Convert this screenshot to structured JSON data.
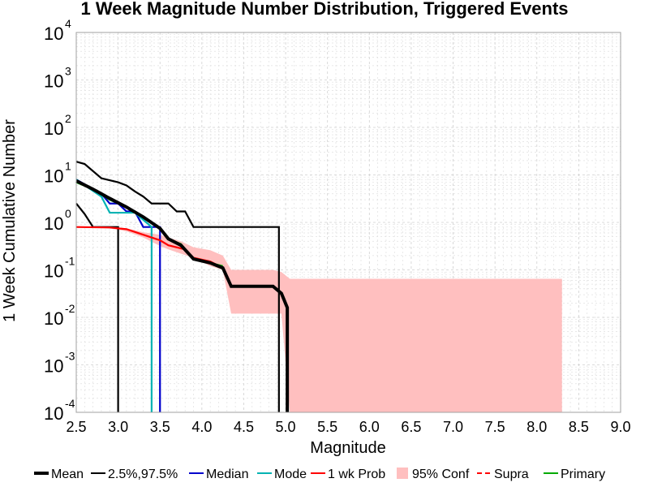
{
  "chart_data": {
    "type": "line",
    "title": "1 Week Magnitude Number Distribution, Triggered Events",
    "xlabel": "Magnitude",
    "ylabel": "1 Week Cumulative Number",
    "xlim": [
      2.5,
      9.0
    ],
    "ylim": [
      0.0001,
      10000
    ],
    "yscale": "log",
    "xticks": [
      "2.5",
      "3.0",
      "3.5",
      "4.0",
      "4.5",
      "5.0",
      "5.5",
      "6.0",
      "6.5",
      "7.0",
      "7.5",
      "8.0",
      "8.5",
      "9.0"
    ],
    "yticks": [
      {
        "base": "10",
        "exp": "-4",
        "value": 0.0001
      },
      {
        "base": "10",
        "exp": "-3",
        "value": 0.001
      },
      {
        "base": "10",
        "exp": "-2",
        "value": 0.01
      },
      {
        "base": "10",
        "exp": "-1",
        "value": 0.1
      },
      {
        "base": "10",
        "exp": "0",
        "value": 1
      },
      {
        "base": "10",
        "exp": "1",
        "value": 10
      },
      {
        "base": "10",
        "exp": "2",
        "value": 100
      },
      {
        "base": "10",
        "exp": "3",
        "value": 1000
      },
      {
        "base": "10",
        "exp": "4",
        "value": 10000
      }
    ],
    "grid": true,
    "legend_position": "bottom",
    "legend": [
      {
        "name": "Mean",
        "color": "#000000",
        "style": "thick"
      },
      {
        "name": "2.5%,97.5%",
        "color": "#000000",
        "style": "thin"
      },
      {
        "name": "Median",
        "color": "#0000cc",
        "style": "thin"
      },
      {
        "name": "Mode",
        "color": "#00b3b3",
        "style": "thin"
      },
      {
        "name": "1 wk Prob",
        "color": "#ff0000",
        "style": "thin"
      },
      {
        "name": "95% Conf",
        "color": "#ffbfbf",
        "style": "patch"
      },
      {
        "name": "Supra",
        "color": "#ff0000",
        "style": "dashed"
      },
      {
        "name": "Primary",
        "color": "#00aa00",
        "style": "thin"
      }
    ],
    "series": [
      {
        "name": "95% Conf",
        "kind": "band",
        "color": "#ffbfbf",
        "x": [
          2.5,
          2.7,
          2.9,
          3.1,
          3.3,
          3.5,
          3.6,
          3.75,
          3.9,
          4.1,
          4.25,
          4.35,
          4.5,
          4.6,
          4.75,
          4.85,
          4.95,
          5.05,
          8.3
        ],
        "lower": [
          0.8,
          0.8,
          0.75,
          0.65,
          0.48,
          0.32,
          0.27,
          0.22,
          0.18,
          0.12,
          0.1,
          0.012,
          0.012,
          0.012,
          0.012,
          0.012,
          0.012,
          0.0001,
          0.0001
        ],
        "upper": [
          0.8,
          0.8,
          0.8,
          0.75,
          0.62,
          0.55,
          0.48,
          0.4,
          0.3,
          0.26,
          0.2,
          0.1,
          0.1,
          0.1,
          0.1,
          0.1,
          0.09,
          0.065,
          0.065
        ]
      },
      {
        "name": "97.5%",
        "kind": "line",
        "color": "#000000",
        "width": 2.2,
        "x": [
          2.5,
          2.6,
          2.8,
          3.0,
          3.1,
          3.2,
          3.3,
          3.4,
          3.5,
          3.6,
          3.7,
          3.8,
          3.9,
          4.0,
          4.9,
          4.92,
          4.92
        ],
        "y": [
          19,
          17,
          8.5,
          7,
          6,
          4.5,
          3.5,
          2.5,
          2.5,
          2.5,
          1.7,
          1.7,
          0.8,
          0.8,
          0.8,
          0.8,
          0.0001
        ]
      },
      {
        "name": "2.5%",
        "kind": "line",
        "color": "#000000",
        "width": 2.2,
        "x": [
          2.5,
          2.6,
          2.7,
          3.0,
          3.0
        ],
        "y": [
          2.5,
          1.5,
          0.8,
          0.8,
          0.0001
        ]
      },
      {
        "name": "Median",
        "kind": "line",
        "color": "#0000cc",
        "width": 2.2,
        "x": [
          2.5,
          2.8,
          2.9,
          3.0,
          3.1,
          3.2,
          3.3,
          3.5,
          3.5
        ],
        "y": [
          8,
          4,
          2.5,
          2.5,
          1.7,
          1.7,
          0.8,
          0.8,
          0.0001
        ]
      },
      {
        "name": "Mode",
        "kind": "line",
        "color": "#00b3b3",
        "width": 2.2,
        "x": [
          2.5,
          2.8,
          2.9,
          3.1,
          3.2,
          3.4,
          3.4
        ],
        "y": [
          8,
          3.5,
          1.6,
          1.6,
          1.6,
          0.8,
          0.0001
        ]
      },
      {
        "name": "1 wk Prob",
        "kind": "line",
        "color": "#ff0000",
        "width": 2.2,
        "x": [
          2.5,
          2.9,
          3.1,
          3.3,
          3.5,
          3.6,
          3.8,
          3.9,
          4.1,
          4.25,
          4.35,
          4.5,
          4.6,
          4.75,
          4.85,
          4.95,
          5.0
        ],
        "y": [
          0.8,
          0.78,
          0.72,
          0.55,
          0.42,
          0.33,
          0.27,
          0.18,
          0.15,
          0.11,
          0.045,
          0.045,
          0.045,
          0.045,
          0.045,
          0.032,
          0.018
        ]
      },
      {
        "name": "Primary",
        "kind": "line",
        "color": "#00aa00",
        "width": 2.2,
        "x": [
          2.5,
          2.7,
          2.9,
          3.1,
          3.3,
          3.5,
          3.6,
          3.75,
          3.9,
          4.1,
          4.25
        ],
        "y": [
          7,
          5,
          3,
          2.1,
          1.3,
          0.75,
          0.45,
          0.35,
          0.17,
          0.14,
          0.12
        ]
      },
      {
        "name": "Mean",
        "kind": "line",
        "color": "#000000",
        "width": 4,
        "x": [
          2.5,
          2.7,
          2.9,
          3.1,
          3.3,
          3.5,
          3.6,
          3.75,
          3.9,
          4.1,
          4.25,
          4.35,
          4.5,
          4.6,
          4.75,
          4.85,
          4.95,
          5.02,
          5.02
        ],
        "y": [
          7.5,
          5,
          3.2,
          2.1,
          1.3,
          0.75,
          0.45,
          0.33,
          0.17,
          0.14,
          0.11,
          0.045,
          0.045,
          0.045,
          0.045,
          0.045,
          0.032,
          0.016,
          0.0001
        ]
      }
    ]
  }
}
